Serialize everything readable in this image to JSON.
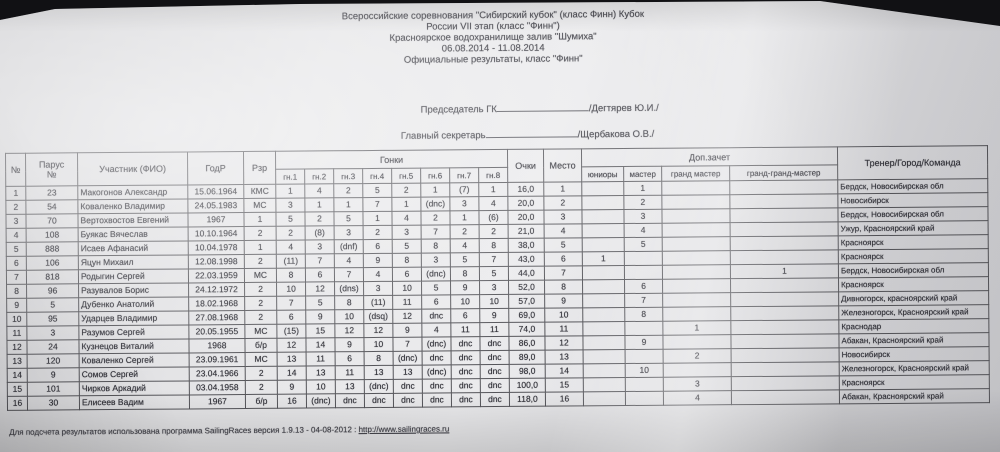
{
  "header": {
    "title_lines": [
      "Всероссийские соревнования  \"Сибирский кубок\"  (класс Финн) Кубок",
      "России  VII этап  (класс \"Финн\")",
      "Красноярское  водохранилище залив \"Шумиха\"",
      "06.08.2014 - 11.08.2014",
      "Официальные результаты, класс \"Финн\""
    ]
  },
  "officials": {
    "chairman_label": "Председатель ГК",
    "chairman_name": "/Дегтярев Ю.И./",
    "secretary_label": "Главный секретарь",
    "secretary_name": "/Щербакова О.В./"
  },
  "table": {
    "columns": {
      "num": "№",
      "sail": "Парус\n№",
      "participant": "Участник (ФИО)",
      "year": "ГодР",
      "rank": "Рзр",
      "races_group": "Гонки",
      "points": "Очки",
      "place": "Место",
      "extra_group": "Доп.зачет",
      "coach": "Тренер/Город/Команда"
    },
    "race_headers": [
      "гн.1",
      "гн.2",
      "гн.3",
      "гн.4",
      "гн.5",
      "гн.6",
      "гн.7",
      "гн.8"
    ],
    "extra_headers": [
      "юниоры",
      "мастер",
      "гранд мастер",
      "гранд-гранд-мастер"
    ],
    "rows": [
      {
        "num": "1",
        "sail": "23",
        "name": "Макогонов Александр",
        "year": "15.06.1964",
        "rank": "КМС",
        "races": [
          "1",
          "4",
          "2",
          "5",
          "2",
          "1",
          "(7)",
          "1"
        ],
        "points": "16,0",
        "place": "1",
        "juniors": "",
        "master": "1",
        "grand": "",
        "grandgrand": "",
        "city": "Бердск, Новосибирская обл"
      },
      {
        "num": "2",
        "sail": "54",
        "name": "Коваленко Владимир",
        "year": "24.05.1983",
        "rank": "МС",
        "races": [
          "3",
          "1",
          "1",
          "7",
          "1",
          "(dnc)",
          "3",
          "4"
        ],
        "points": "20,0",
        "place": "2",
        "juniors": "",
        "master": "2",
        "grand": "",
        "grandgrand": "",
        "city": "Новосибирск"
      },
      {
        "num": "3",
        "sail": "70",
        "name": "Вертохвостов Евгений",
        "year": "1967",
        "rank": "1",
        "races": [
          "5",
          "2",
          "5",
          "1",
          "4",
          "2",
          "1",
          "(6)"
        ],
        "points": "20,0",
        "place": "3",
        "juniors": "",
        "master": "3",
        "grand": "",
        "grandgrand": "",
        "city": "Бердск, Новосибирская обл"
      },
      {
        "num": "4",
        "sail": "108",
        "name": "Буякас Вячеслав",
        "year": "10.10.1964",
        "rank": "2",
        "races": [
          "2",
          "(8)",
          "3",
          "2",
          "3",
          "7",
          "2",
          "2"
        ],
        "points": "21,0",
        "place": "4",
        "juniors": "",
        "master": "4",
        "grand": "",
        "grandgrand": "",
        "city": "Ужур, Красноярский край"
      },
      {
        "num": "5",
        "sail": "888",
        "name": "Исаев Афанасий",
        "year": "10.04.1978",
        "rank": "1",
        "races": [
          "4",
          "3",
          "(dnf)",
          "6",
          "5",
          "8",
          "4",
          "8"
        ],
        "points": "38,0",
        "place": "5",
        "juniors": "",
        "master": "5",
        "grand": "",
        "grandgrand": "",
        "city": "Красноярск"
      },
      {
        "num": "6",
        "sail": "106",
        "name": "Яцун Михаил",
        "year": "12.08.1998",
        "rank": "2",
        "races": [
          "(11)",
          "7",
          "4",
          "9",
          "8",
          "3",
          "5",
          "7"
        ],
        "points": "43,0",
        "place": "6",
        "juniors": "1",
        "master": "",
        "grand": "",
        "grandgrand": "",
        "city": "Красноярск"
      },
      {
        "num": "7",
        "sail": "818",
        "name": "Родыгин  Сергей",
        "year": "22.03.1959",
        "rank": "МС",
        "races": [
          "8",
          "6",
          "7",
          "4",
          "6",
          "(dnc)",
          "8",
          "5"
        ],
        "points": "44,0",
        "place": "7",
        "juniors": "",
        "master": "",
        "grand": "",
        "grandgrand": "1",
        "city": "Бердск, Новосибирская обл"
      },
      {
        "num": "8",
        "sail": "96",
        "name": "Разувалов  Борис",
        "year": "24.12.1972",
        "rank": "2",
        "races": [
          "10",
          "12",
          "(dns)",
          "3",
          "10",
          "5",
          "9",
          "3"
        ],
        "points": "52,0",
        "place": "8",
        "juniors": "",
        "master": "6",
        "grand": "",
        "grandgrand": "",
        "city": "Красноярск"
      },
      {
        "num": "9",
        "sail": "5",
        "name": "Дубенко Анатолий",
        "year": "18.02.1968",
        "rank": "2",
        "races": [
          "7",
          "5",
          "8",
          "(11)",
          "11",
          "6",
          "10",
          "10"
        ],
        "points": "57,0",
        "place": "9",
        "juniors": "",
        "master": "7",
        "grand": "",
        "grandgrand": "",
        "city": "Дивногорск, красноярский край"
      },
      {
        "num": "10",
        "sail": "95",
        "name": "Ударцев Владимир",
        "year": "27.08.1968",
        "rank": "2",
        "races": [
          "6",
          "9",
          "10",
          "(dsq)",
          "12",
          "dnc",
          "6",
          "9"
        ],
        "points": "69,0",
        "place": "10",
        "juniors": "",
        "master": "8",
        "grand": "",
        "grandgrand": "",
        "city": "Железногорск, Красноярский край"
      },
      {
        "num": "11",
        "sail": "3",
        "name": "Разумов Сергей",
        "year": "20.05.1955",
        "rank": "МС",
        "races": [
          "(15)",
          "15",
          "12",
          "12",
          "9",
          "4",
          "11",
          "11"
        ],
        "points": "74,0",
        "place": "11",
        "juniors": "",
        "master": "",
        "grand": "1",
        "grandgrand": "",
        "city": "Краснодар"
      },
      {
        "num": "12",
        "sail": "24",
        "name": "Кузнецов Виталий",
        "year": "1968",
        "rank": "б/р",
        "races": [
          "12",
          "14",
          "9",
          "10",
          "7",
          "(dnc)",
          "dnc",
          "dnc"
        ],
        "points": "86,0",
        "place": "12",
        "juniors": "",
        "master": "9",
        "grand": "",
        "grandgrand": "",
        "city": "Абакан, Красноярский край"
      },
      {
        "num": "13",
        "sail": "120",
        "name": "Коваленко Сергей",
        "year": "23.09.1961",
        "rank": "МС",
        "races": [
          "13",
          "11",
          "6",
          "8",
          "(dnc)",
          "dnc",
          "dnc",
          "dnc"
        ],
        "points": "89,0",
        "place": "13",
        "juniors": "",
        "master": "",
        "grand": "2",
        "grandgrand": "",
        "city": "Новосибирск"
      },
      {
        "num": "14",
        "sail": "9",
        "name": "Сомов  Сергей",
        "year": "23.04.1966",
        "rank": "2",
        "races": [
          "14",
          "13",
          "11",
          "13",
          "13",
          "(dnc)",
          "dnc",
          "dnc"
        ],
        "points": "98,0",
        "place": "14",
        "juniors": "",
        "master": "10",
        "grand": "",
        "grandgrand": "",
        "city": "Железногорск, Красноярский край"
      },
      {
        "num": "15",
        "sail": "101",
        "name": "Чирков Аркадий",
        "year": "03.04.1958",
        "rank": "2",
        "races": [
          "9",
          "10",
          "13",
          "(dnc)",
          "dnc",
          "dnc",
          "dnc",
          "dnc"
        ],
        "points": "100,0",
        "place": "15",
        "juniors": "",
        "master": "",
        "grand": "3",
        "grandgrand": "",
        "city": "Красноярск"
      },
      {
        "num": "16",
        "sail": "30",
        "name": "Елисеев Вадим",
        "year": "1967",
        "rank": "б/р",
        "races": [
          "16",
          "(dnc)",
          "dnc",
          "dnc",
          "dnc",
          "dnc",
          "dnc",
          "dnc"
        ],
        "points": "118,0",
        "place": "16",
        "juniors": "",
        "master": "",
        "grand": "4",
        "grandgrand": "",
        "city": "Абакан, Красноярский край"
      }
    ]
  },
  "footer": {
    "text": "Для подсчета результатов использована программа SailingRaces версия 1.9.13 - 04-08-2012 :",
    "link": "http://www.sailingraces.ru"
  }
}
